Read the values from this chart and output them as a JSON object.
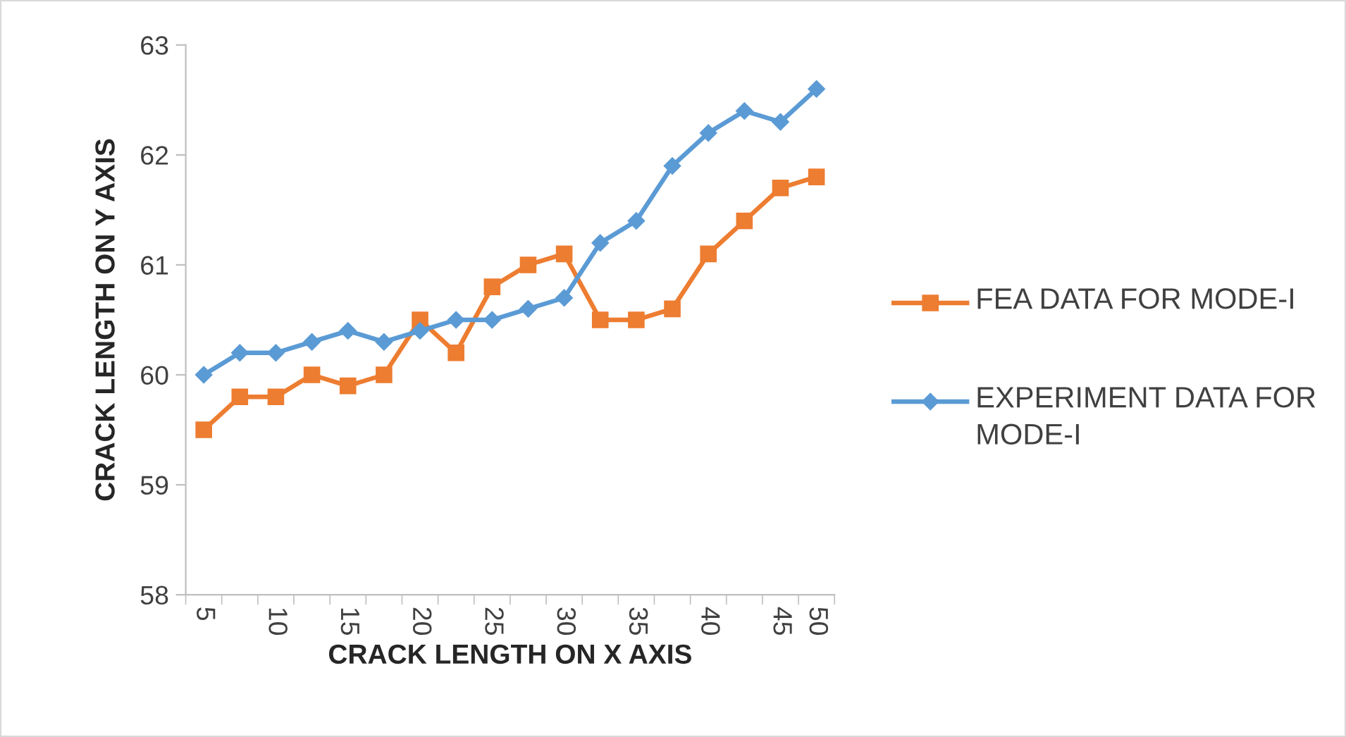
{
  "chart_data": {
    "type": "line",
    "xlabel": "CRACK LENGTH ON X AXIS",
    "ylabel": "CRACK LENGTH ON Y AXIS",
    "categories": [
      "5",
      null,
      "10",
      null,
      "15",
      null,
      "20",
      null,
      "25",
      null,
      "30",
      null,
      "35",
      null,
      "40",
      null,
      "45",
      "50"
    ],
    "series": [
      {
        "name": "FEA DATA FOR MODE-I",
        "color": "#ed7d31",
        "marker": "square",
        "values": [
          59.5,
          59.8,
          59.8,
          60.0,
          59.9,
          60.0,
          60.5,
          60.2,
          60.8,
          61.0,
          61.1,
          60.5,
          60.5,
          60.6,
          61.1,
          61.4,
          61.7,
          61.8
        ]
      },
      {
        "name": "EXPERIMENT DATA FOR MODE-I",
        "color": "#5b9bd5",
        "marker": "diamond",
        "values": [
          60.0,
          60.2,
          60.2,
          60.3,
          60.4,
          60.3,
          60.4,
          60.5,
          60.5,
          60.6,
          60.7,
          61.2,
          61.4,
          61.9,
          62.2,
          62.4,
          62.3,
          62.6
        ]
      }
    ],
    "ylim": [
      58,
      63
    ],
    "yticks": [
      58,
      59,
      60,
      61,
      62,
      63
    ],
    "grid": false,
    "legend": "right"
  }
}
